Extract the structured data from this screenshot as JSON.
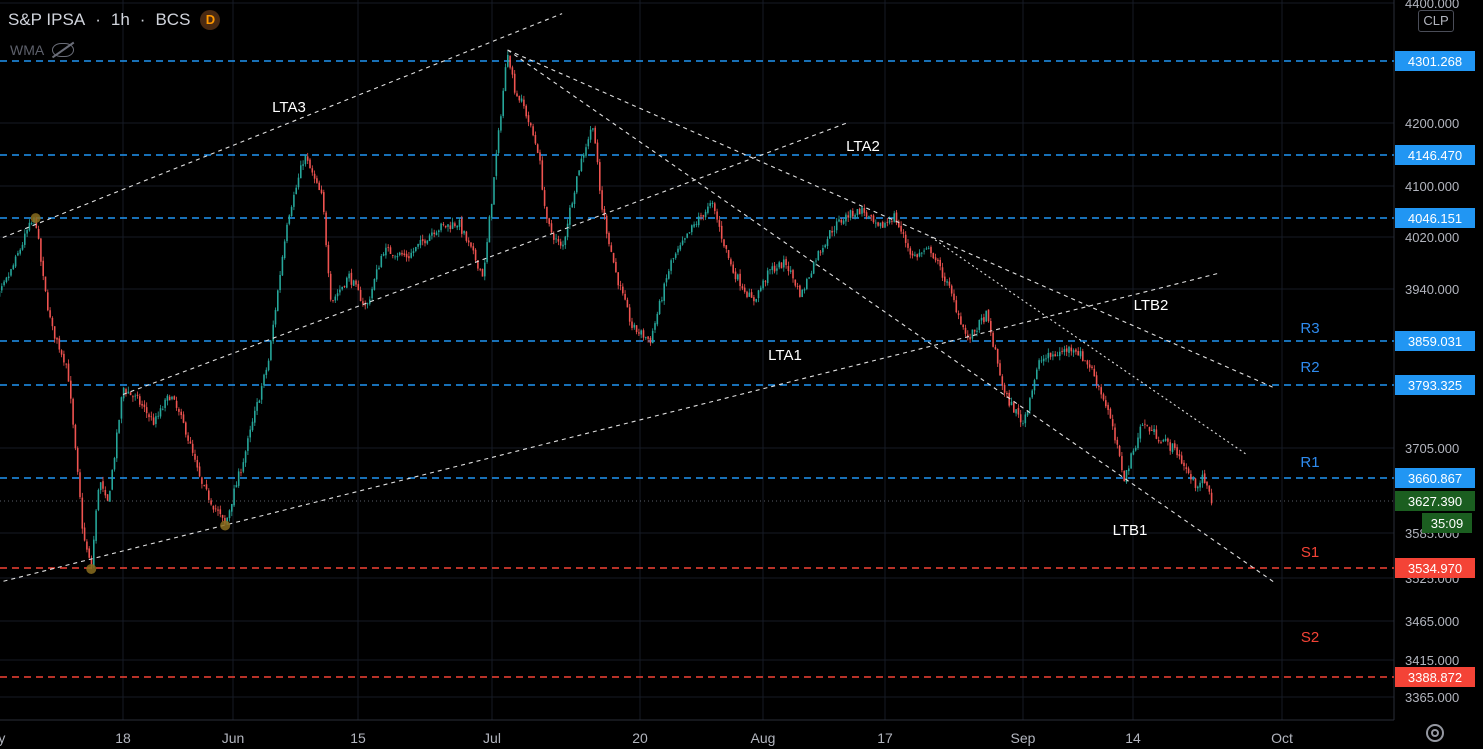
{
  "header": {
    "symbol": "S&P IPSA",
    "interval": "1h",
    "exchange": "BCS",
    "badge": "D",
    "indicator": "WMA"
  },
  "axis": {
    "currency": "CLP"
  },
  "colors": {
    "background": "#000000",
    "grid": "#161a25",
    "up": "#26a69a",
    "down": "#ef5350",
    "resistance": "#2196f3",
    "support": "#f44336",
    "trendline": "#e0e0e0",
    "last_price": "#1b5e20"
  },
  "chart_data": {
    "type": "candlestick",
    "title": "S&P IPSA · 1h · BCS",
    "ylim": [
      3335,
      4400
    ],
    "x_ticks": [
      "ay",
      "18",
      "Jun",
      "15",
      "Jul",
      "20",
      "Aug",
      "17",
      "Sep",
      "14",
      "Oct"
    ],
    "y_ticks": [
      4400,
      4200,
      4100,
      4020,
      3940,
      3705,
      3585,
      3525,
      3465,
      3415,
      3365
    ],
    "price_levels": [
      {
        "value": "4301.268",
        "kind": "resistance"
      },
      {
        "value": "4146.470",
        "kind": "resistance"
      },
      {
        "value": "4046.151",
        "kind": "resistance"
      },
      {
        "value": "3859.031",
        "kind": "resistance",
        "label": "R3"
      },
      {
        "value": "3793.325",
        "kind": "resistance",
        "label": "R2"
      },
      {
        "value": "3660.867",
        "kind": "resistance",
        "label": "R1"
      },
      {
        "value": "3534.970",
        "kind": "support",
        "label": "S1"
      },
      {
        "value": "3388.872",
        "kind": "support",
        "label": "S2"
      }
    ],
    "last_price": "3627.390",
    "countdown": "35:09",
    "trendlines": [
      {
        "label": "LTA1",
        "from": [
          "May 01",
          3515
        ],
        "to": [
          "Sep 24",
          3965
        ]
      },
      {
        "label": "LTA2",
        "from": [
          "May 18",
          3780
        ],
        "to": [
          "Aug 12",
          4200
        ]
      },
      {
        "label": "LTA3",
        "from": [
          "May 01",
          4010
        ],
        "to": [
          "Jul 10",
          4382
        ]
      },
      {
        "label": "LTB1",
        "from": [
          "Jul 03",
          4320
        ],
        "to": [
          "Sep 30",
          3520
        ]
      },
      {
        "label": "LTB2",
        "from": [
          "Jul 03",
          4320
        ],
        "to": [
          "Sep 30",
          3790
        ]
      },
      {
        "label": "",
        "from": [
          "Aug 22",
          4020
        ],
        "to": [
          "Sep 27",
          3695
        ]
      }
    ],
    "swing_markers": [
      {
        "date": "May 07",
        "price": 4046
      },
      {
        "date": "May 14",
        "price": 3534
      },
      {
        "date": "May 31",
        "price": 3595
      }
    ],
    "path": [
      [
        "May 01",
        3860
      ],
      [
        "May 02",
        3920
      ],
      [
        "May 04",
        3970
      ],
      [
        "May 06",
        4030
      ],
      [
        "May 07",
        4046
      ],
      [
        "May 08",
        3950
      ],
      [
        "May 09",
        3880
      ],
      [
        "May 11",
        3820
      ],
      [
        "May 12",
        3700
      ],
      [
        "May 13",
        3580
      ],
      [
        "May 14",
        3534
      ],
      [
        "May 15",
        3660
      ],
      [
        "May 16",
        3620
      ],
      [
        "May 17",
        3700
      ],
      [
        "May 18",
        3790
      ],
      [
        "May 20",
        3770
      ],
      [
        "May 22",
        3740
      ],
      [
        "May 24",
        3780
      ],
      [
        "May 26",
        3730
      ],
      [
        "May 28",
        3650
      ],
      [
        "May 31",
        3595
      ],
      [
        "Jun 02",
        3680
      ],
      [
        "Jun 05",
        3830
      ],
      [
        "Jun 07",
        4040
      ],
      [
        "Jun 09",
        4146
      ],
      [
        "Jun 11",
        4080
      ],
      [
        "Jun 12",
        3920
      ],
      [
        "Jun 14",
        3960
      ],
      [
        "Jun 16",
        3910
      ],
      [
        "Jun 18",
        4000
      ],
      [
        "Jun 21",
        3990
      ],
      [
        "Jun 24",
        4030
      ],
      [
        "Jun 27",
        4040
      ],
      [
        "Jun 30",
        3960
      ],
      [
        "Jul 01",
        4080
      ],
      [
        "Jul 02",
        4200
      ],
      [
        "Jul 03",
        4320
      ],
      [
        "Jul 04",
        4250
      ],
      [
        "Jul 05",
        4230
      ],
      [
        "Jul 07",
        4150
      ],
      [
        "Jul 08",
        4040
      ],
      [
        "Jul 10",
        4000
      ],
      [
        "Jul 12",
        4120
      ],
      [
        "Jul 14",
        4200
      ],
      [
        "Jul 15",
        4070
      ],
      [
        "Jul 17",
        3960
      ],
      [
        "Jul 19",
        3880
      ],
      [
        "Jul 21",
        3860
      ],
      [
        "Jul 23",
        3980
      ],
      [
        "Jul 25",
        4030
      ],
      [
        "Jul 27",
        4070
      ],
      [
        "Jul 29",
        3970
      ],
      [
        "Jul 31",
        3920
      ],
      [
        "Aug 02",
        3970
      ],
      [
        "Aug 04",
        3980
      ],
      [
        "Aug 06",
        3930
      ],
      [
        "Aug 08",
        3990
      ],
      [
        "Aug 10",
        4030
      ],
      [
        "Aug 12",
        4050
      ],
      [
        "Aug 14",
        4060
      ],
      [
        "Aug 16",
        4030
      ],
      [
        "Aug 18",
        4050
      ],
      [
        "Aug 20",
        3990
      ],
      [
        "Aug 22",
        4000
      ],
      [
        "Aug 24",
        3940
      ],
      [
        "Aug 26",
        3860
      ],
      [
        "Aug 28",
        3900
      ],
      [
        "Aug 30",
        3780
      ],
      [
        "Sep 01",
        3740
      ],
      [
        "Sep 03",
        3830
      ],
      [
        "Sep 05",
        3840
      ],
      [
        "Sep 07",
        3850
      ],
      [
        "Sep 09",
        3820
      ],
      [
        "Sep 11",
        3760
      ],
      [
        "Sep 13",
        3660
      ],
      [
        "Sep 15",
        3740
      ],
      [
        "Sep 17",
        3720
      ],
      [
        "Sep 19",
        3700
      ],
      [
        "Sep 21",
        3650
      ],
      [
        "Sep 22",
        3660
      ],
      [
        "Sep 23",
        3627
      ]
    ]
  }
}
